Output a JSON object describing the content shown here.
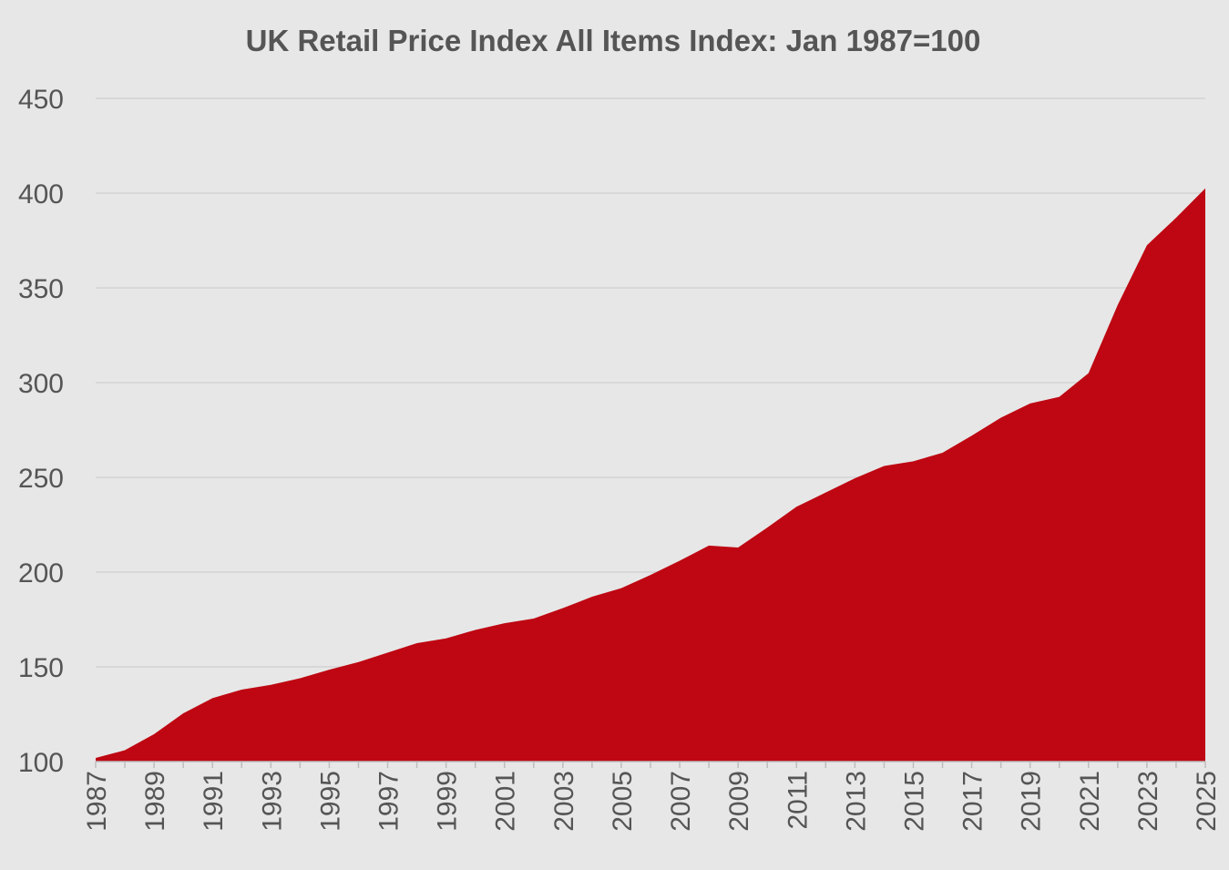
{
  "chart_data": {
    "type": "area",
    "title": "UK Retail Price Index All Items Index: Jan 1987=100",
    "xlabel": "",
    "ylabel": "",
    "ylim": [
      100,
      450
    ],
    "xlim": [
      1987,
      2025
    ],
    "y_ticks": [
      "100",
      "150",
      "200",
      "250",
      "300",
      "350",
      "400",
      "450"
    ],
    "x_ticks": [
      "1987",
      "1989",
      "1991",
      "1993",
      "1995",
      "1997",
      "1999",
      "2001",
      "2003",
      "2005",
      "2007",
      "2009",
      "2011",
      "2013",
      "2015",
      "2017",
      "2019",
      "2021",
      "2023",
      "2025"
    ],
    "grid": true,
    "legend": "none",
    "color": "#be0712",
    "x": [
      1987,
      1988,
      1989,
      1990,
      1991,
      1992,
      1993,
      1994,
      1995,
      1996,
      1997,
      1998,
      1999,
      2000,
      2001,
      2002,
      2003,
      2004,
      2005,
      2006,
      2007,
      2008,
      2009,
      2010,
      2011,
      2012,
      2013,
      2014,
      2015,
      2016,
      2017,
      2018,
      2019,
      2020,
      2021,
      2022,
      2023,
      2024,
      2025
    ],
    "series": [
      {
        "values": [
          101.9,
          106.0,
          114.5,
          125.5,
          133.5,
          138.0,
          140.5,
          144.0,
          148.5,
          152.5,
          157.5,
          162.5,
          165.0,
          169.5,
          173.0,
          175.5,
          181.0,
          187.0,
          191.5,
          198.5,
          206.0,
          214.0,
          213.0,
          223.5,
          234.5,
          242.0,
          249.5,
          256.0,
          258.5,
          263.0,
          272.0,
          281.5,
          289.0,
          292.5,
          305.0,
          341.0,
          372.5,
          387.0,
          402.5
        ]
      }
    ]
  }
}
